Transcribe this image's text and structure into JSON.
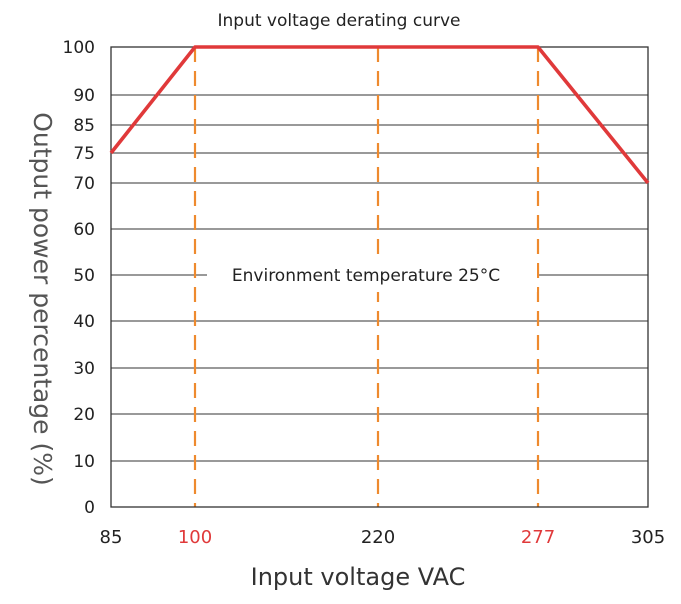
{
  "chart_data": {
    "type": "line",
    "title": "Input voltage derating curve",
    "xlabel": "Input voltage VAC",
    "ylabel": "Output power percentage (%)",
    "annotation": "Environment temperature 25°C",
    "xlim": [
      85,
      305
    ],
    "y_ticks": [
      0,
      10,
      20,
      30,
      40,
      50,
      60,
      70,
      75,
      85,
      90,
      100
    ],
    "x_ticks": [
      {
        "value": 85,
        "label": "85",
        "highlight": false
      },
      {
        "value": 100,
        "label": "100",
        "highlight": true
      },
      {
        "value": 220,
        "label": "220",
        "highlight": false
      },
      {
        "value": 277,
        "label": "277",
        "highlight": true
      },
      {
        "value": 305,
        "label": "305",
        "highlight": false
      }
    ],
    "dashed_verticals": [
      100,
      220,
      277
    ],
    "series": [
      {
        "x": [
          85,
          100,
          277,
          305
        ],
        "y": [
          75,
          100,
          100,
          70
        ]
      }
    ],
    "grid": true,
    "colors": {
      "curve": "#e0393a",
      "dashed": "#ee8a2e",
      "grid": "#333333",
      "highlight_tick": "#e0393a",
      "tick": "#222222"
    }
  }
}
